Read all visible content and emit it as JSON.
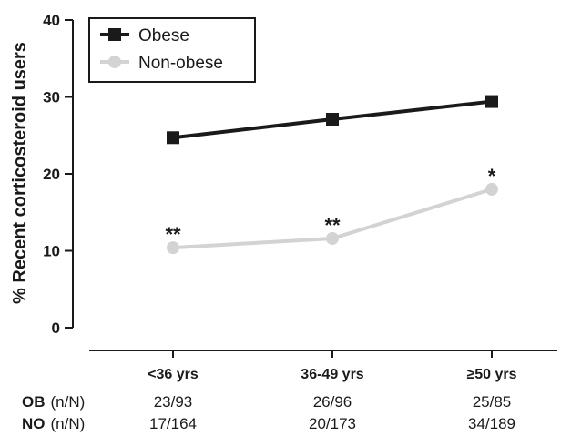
{
  "chart_data": {
    "type": "line",
    "title": "",
    "xlabel": "",
    "ylabel": "% Recent corticosteroid users",
    "ylim": [
      0,
      40
    ],
    "yticks": [
      0,
      10,
      20,
      30,
      40
    ],
    "grid": false,
    "legend_position": "top-left",
    "categories": [
      "<36 yrs",
      "36-49 yrs",
      "≥50 yrs"
    ],
    "series": [
      {
        "name": "Obese",
        "values": [
          24.7,
          27.1,
          29.4
        ],
        "color": "#1a1a1a",
        "marker": "square",
        "significance": [
          "",
          "",
          ""
        ]
      },
      {
        "name": "Non-obese",
        "values": [
          10.4,
          11.6,
          18.0
        ],
        "color": "#d3d3d3",
        "marker": "circle",
        "significance": [
          "**",
          "**",
          "*"
        ]
      }
    ]
  },
  "counts_table": {
    "rows": [
      {
        "label": "OB",
        "unit": "(n/N)",
        "cells": [
          "23/93",
          "26/96",
          "25/85"
        ]
      },
      {
        "label": "NO",
        "unit": "(n/N)",
        "cells": [
          "17/164",
          "20/173",
          "34/189"
        ]
      }
    ]
  }
}
